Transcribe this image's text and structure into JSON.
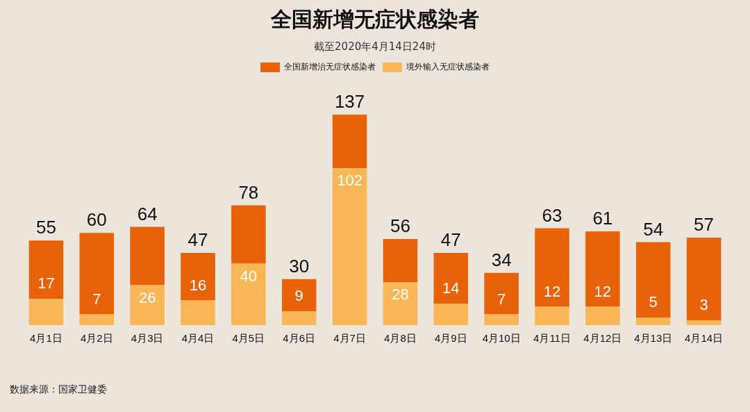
{
  "chart_data": {
    "type": "bar",
    "title": "全国新增无症状感染者",
    "subtitle": "截至2020年4月14日24时",
    "stacked": true,
    "legend": "top",
    "tick_labels": "x",
    "grid": false,
    "categories": [
      "4月1日",
      "4月2日",
      "4月3日",
      "4月4日",
      "4月5日",
      "4月6日",
      "4月7日",
      "4月8日",
      "4月9日",
      "4月10日",
      "4月11日",
      "4月12日",
      "4月13日",
      "4月14日"
    ],
    "series": [
      {
        "name": "境外输入无症状感染者",
        "color": "#f8b656",
        "values": [
          17,
          7,
          26,
          16,
          40,
          9,
          102,
          28,
          14,
          7,
          12,
          12,
          5,
          3
        ],
        "value_labels": [
          "17",
          "7",
          "26",
          "16",
          "40",
          "9",
          "102",
          "28",
          "14",
          "7",
          "12",
          "12",
          "5",
          "3"
        ]
      },
      {
        "name": "全国新增治无症状感染者",
        "color": "#e8620a",
        "values": [
          38,
          53,
          38,
          31,
          38,
          21,
          35,
          28,
          33,
          27,
          51,
          49,
          49,
          54
        ]
      }
    ],
    "totals": [
      "55",
      "60",
      "64",
      "47",
      "78",
      "30",
      "137",
      "56",
      "47",
      "34",
      "63",
      "61",
      "54",
      "57"
    ],
    "annotations": [
      "数据来源：国家卫健委"
    ]
  }
}
